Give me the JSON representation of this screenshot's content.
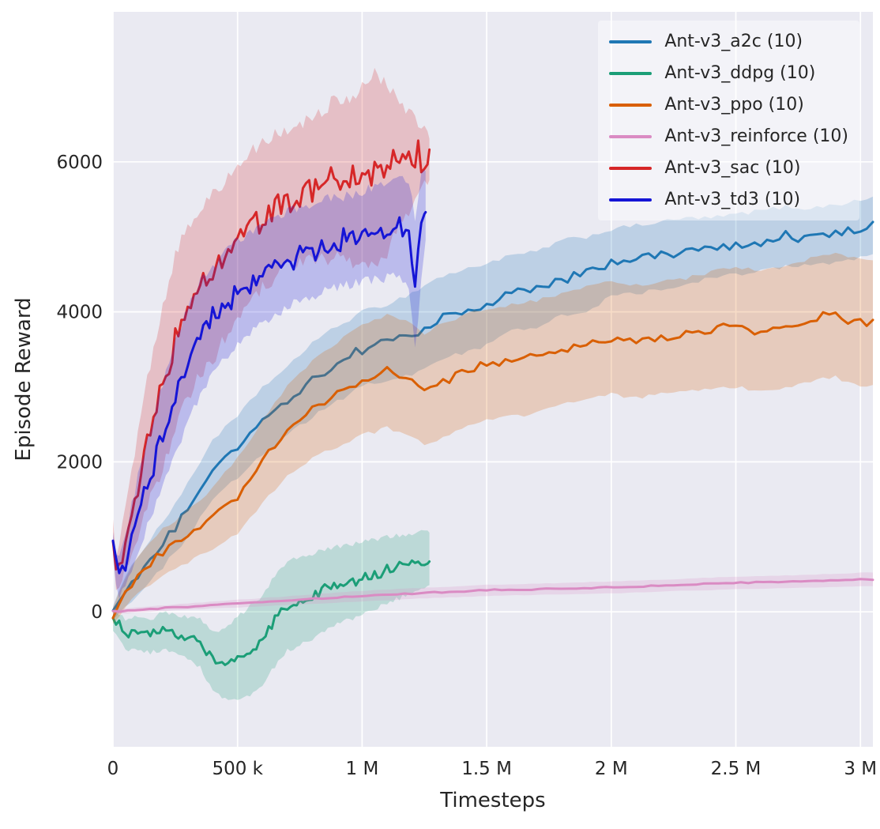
{
  "figure": {
    "background": "#ffffff",
    "axes_background": "#eaeaf2",
    "grid_color": "#ffffff",
    "tick_color": "#262626",
    "label_color": "#262626"
  },
  "chart_data": {
    "type": "line",
    "title": "",
    "xlabel": "Timesteps",
    "ylabel": "Episode Reward",
    "xlim": [
      0,
      3050000
    ],
    "ylim": [
      -1800,
      8000
    ],
    "grid": true,
    "legend_position": "upper right",
    "x_ticks": [
      {
        "v": 0,
        "label": "0"
      },
      {
        "v": 500000,
        "label": "500 k"
      },
      {
        "v": 1000000,
        "label": "1 M"
      },
      {
        "v": 1500000,
        "label": "1.5 M"
      },
      {
        "v": 2000000,
        "label": "2 M"
      },
      {
        "v": 2500000,
        "label": "2.5 M"
      },
      {
        "v": 3000000,
        "label": "3 M"
      }
    ],
    "y_ticks": [
      {
        "v": 0,
        "label": "0"
      },
      {
        "v": 2000,
        "label": "2000"
      },
      {
        "v": 4000,
        "label": "4000"
      },
      {
        "v": 6000,
        "label": "6000"
      }
    ],
    "band_alpha": 0.22,
    "series": [
      {
        "name": "Ant-v3_a2c (10)",
        "color": "#1f77b4",
        "step": 25000,
        "noise": 85,
        "points": [
          [
            0,
            0,
            100
          ],
          [
            50000,
            250,
            200
          ],
          [
            100000,
            500,
            250
          ],
          [
            200000,
            900,
            300
          ],
          [
            300000,
            1350,
            350
          ],
          [
            400000,
            1900,
            400
          ],
          [
            500000,
            2200,
            400
          ],
          [
            600000,
            2550,
            450
          ],
          [
            700000,
            2800,
            450
          ],
          [
            800000,
            3100,
            500
          ],
          [
            900000,
            3300,
            500
          ],
          [
            1000000,
            3500,
            500
          ],
          [
            1100000,
            3600,
            500
          ],
          [
            1200000,
            3700,
            550
          ],
          [
            1300000,
            3900,
            550
          ],
          [
            1400000,
            4000,
            550
          ],
          [
            1500000,
            4100,
            550
          ],
          [
            1600000,
            4250,
            500
          ],
          [
            1700000,
            4300,
            500
          ],
          [
            1800000,
            4450,
            500
          ],
          [
            1900000,
            4500,
            500
          ],
          [
            2000000,
            4650,
            450
          ],
          [
            2100000,
            4700,
            450
          ],
          [
            2200000,
            4750,
            450
          ],
          [
            2300000,
            4800,
            450
          ],
          [
            2400000,
            4850,
            400
          ],
          [
            2500000,
            4900,
            400
          ],
          [
            2600000,
            4950,
            400
          ],
          [
            2700000,
            5000,
            400
          ],
          [
            2800000,
            5000,
            380
          ],
          [
            2900000,
            5050,
            380
          ],
          [
            3000000,
            5100,
            380
          ],
          [
            3050000,
            5150,
            380
          ]
        ]
      },
      {
        "name": "Ant-v3_ddpg (10)",
        "color": "#1b9e77",
        "step": 12500,
        "noise": 90,
        "points": [
          [
            0,
            -100,
            150
          ],
          [
            50000,
            -300,
            200
          ],
          [
            100000,
            -280,
            220
          ],
          [
            150000,
            -320,
            220
          ],
          [
            200000,
            -260,
            250
          ],
          [
            250000,
            -300,
            250
          ],
          [
            300000,
            -350,
            280
          ],
          [
            350000,
            -420,
            320
          ],
          [
            400000,
            -650,
            400
          ],
          [
            450000,
            -700,
            450
          ],
          [
            500000,
            -620,
            550
          ],
          [
            550000,
            -520,
            600
          ],
          [
            600000,
            -380,
            600
          ],
          [
            650000,
            -120,
            600
          ],
          [
            700000,
            80,
            600
          ],
          [
            750000,
            130,
            580
          ],
          [
            800000,
            200,
            560
          ],
          [
            850000,
            300,
            540
          ],
          [
            900000,
            350,
            520
          ],
          [
            950000,
            400,
            500
          ],
          [
            1000000,
            450,
            480
          ],
          [
            1050000,
            500,
            460
          ],
          [
            1100000,
            560,
            440
          ],
          [
            1150000,
            600,
            420
          ],
          [
            1200000,
            650,
            400
          ],
          [
            1270000,
            700,
            370
          ]
        ]
      },
      {
        "name": "Ant-v3_ppo (10)",
        "color": "#d95f02",
        "step": 25000,
        "noise": 75,
        "points": [
          [
            0,
            -50,
            100
          ],
          [
            50000,
            250,
            200
          ],
          [
            100000,
            500,
            250
          ],
          [
            200000,
            800,
            300
          ],
          [
            300000,
            1000,
            350
          ],
          [
            400000,
            1250,
            400
          ],
          [
            500000,
            1550,
            500
          ],
          [
            600000,
            2000,
            550
          ],
          [
            700000,
            2400,
            600
          ],
          [
            800000,
            2700,
            650
          ],
          [
            900000,
            2900,
            700
          ],
          [
            1000000,
            3100,
            750
          ],
          [
            1100000,
            3200,
            750
          ],
          [
            1200000,
            3100,
            750
          ],
          [
            1250000,
            2950,
            750
          ],
          [
            1300000,
            3050,
            750
          ],
          [
            1400000,
            3200,
            750
          ],
          [
            1500000,
            3300,
            750
          ],
          [
            1600000,
            3350,
            750
          ],
          [
            1700000,
            3400,
            750
          ],
          [
            1800000,
            3500,
            750
          ],
          [
            1900000,
            3600,
            750
          ],
          [
            2000000,
            3650,
            750
          ],
          [
            2100000,
            3600,
            750
          ],
          [
            2200000,
            3650,
            750
          ],
          [
            2300000,
            3700,
            750
          ],
          [
            2400000,
            3750,
            780
          ],
          [
            2500000,
            3800,
            800
          ],
          [
            2600000,
            3750,
            800
          ],
          [
            2700000,
            3800,
            800
          ],
          [
            2800000,
            3900,
            820
          ],
          [
            2900000,
            3950,
            820
          ],
          [
            3000000,
            3850,
            850
          ],
          [
            3050000,
            3850,
            850
          ]
        ]
      },
      {
        "name": "Ant-v3_reinforce (10)",
        "color": "#da8bc3",
        "step": 30000,
        "noise": 12,
        "points": [
          [
            0,
            0,
            30
          ],
          [
            250000,
            60,
            40
          ],
          [
            500000,
            110,
            50
          ],
          [
            750000,
            160,
            60
          ],
          [
            1000000,
            210,
            70
          ],
          [
            1250000,
            250,
            70
          ],
          [
            1500000,
            285,
            75
          ],
          [
            1750000,
            305,
            75
          ],
          [
            2000000,
            325,
            80
          ],
          [
            2250000,
            355,
            80
          ],
          [
            2500000,
            385,
            85
          ],
          [
            2750000,
            405,
            85
          ],
          [
            3000000,
            430,
            90
          ],
          [
            3050000,
            435,
            90
          ]
        ]
      },
      {
        "name": "Ant-v3_sac (10)",
        "color": "#d62728",
        "step": 12500,
        "noise": 280,
        "points": [
          [
            0,
            1000,
            150
          ],
          [
            15000,
            500,
            250
          ],
          [
            50000,
            1000,
            400
          ],
          [
            100000,
            1700,
            700
          ],
          [
            150000,
            2400,
            900
          ],
          [
            200000,
            3000,
            1100
          ],
          [
            250000,
            3600,
            1150
          ],
          [
            300000,
            4000,
            1150
          ],
          [
            350000,
            4300,
            1100
          ],
          [
            400000,
            4450,
            1100
          ],
          [
            450000,
            4700,
            1050
          ],
          [
            500000,
            4900,
            1000
          ],
          [
            550000,
            5100,
            1000
          ],
          [
            600000,
            5300,
            950
          ],
          [
            650000,
            5400,
            950
          ],
          [
            700000,
            5500,
            900
          ],
          [
            750000,
            5600,
            900
          ],
          [
            800000,
            5650,
            950
          ],
          [
            850000,
            5700,
            1000
          ],
          [
            900000,
            5800,
            1050
          ],
          [
            950000,
            5750,
            1100
          ],
          [
            1000000,
            5800,
            1200
          ],
          [
            1050000,
            5900,
            1300
          ],
          [
            1100000,
            5900,
            1100
          ],
          [
            1150000,
            6000,
            800
          ],
          [
            1200000,
            6000,
            600
          ],
          [
            1230000,
            6050,
            400
          ],
          [
            1270000,
            6050,
            300
          ]
        ]
      },
      {
        "name": "Ant-v3_td3 (10)",
        "color": "#1515d6",
        "step": 12500,
        "noise": 190,
        "points": [
          [
            0,
            900,
            150
          ],
          [
            20000,
            400,
            250
          ],
          [
            50000,
            700,
            350
          ],
          [
            100000,
            1300,
            500
          ],
          [
            150000,
            1850,
            600
          ],
          [
            200000,
            2350,
            700
          ],
          [
            250000,
            2850,
            750
          ],
          [
            300000,
            3300,
            750
          ],
          [
            350000,
            3650,
            750
          ],
          [
            400000,
            3900,
            700
          ],
          [
            450000,
            4100,
            700
          ],
          [
            500000,
            4250,
            700
          ],
          [
            550000,
            4400,
            680
          ],
          [
            600000,
            4500,
            650
          ],
          [
            650000,
            4600,
            650
          ],
          [
            700000,
            4700,
            650
          ],
          [
            750000,
            4780,
            620
          ],
          [
            800000,
            4820,
            620
          ],
          [
            850000,
            4900,
            600
          ],
          [
            900000,
            4920,
            600
          ],
          [
            950000,
            4960,
            600
          ],
          [
            1000000,
            5000,
            600
          ],
          [
            1050000,
            5050,
            620
          ],
          [
            1100000,
            5100,
            650
          ],
          [
            1150000,
            5120,
            650
          ],
          [
            1190000,
            5050,
            700
          ],
          [
            1215000,
            4300,
            900
          ],
          [
            1235000,
            5100,
            700
          ],
          [
            1255000,
            5400,
            500
          ]
        ]
      }
    ]
  }
}
